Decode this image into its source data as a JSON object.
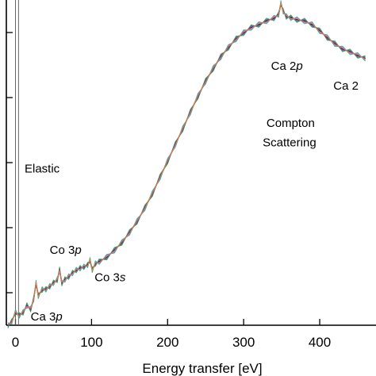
{
  "chart_data": {
    "type": "line",
    "title": "",
    "xlabel": "Energy transfer [eV]",
    "ylabel": "",
    "xlim": [
      -12,
      474
    ],
    "ylim": [
      0,
      100
    ],
    "grid": false,
    "x_ticks": [
      0,
      100,
      200,
      300,
      400
    ],
    "x_tick_labels": [
      "0",
      "100",
      "200",
      "300",
      "400"
    ],
    "y_tick_count": 5,
    "elastic_line_x": [
      0,
      4
    ],
    "series": [
      {
        "color": "#000000",
        "points": [
          [
            -10,
            0
          ],
          [
            -5,
            1
          ],
          [
            0,
            4
          ],
          [
            5,
            3
          ],
          [
            10,
            4
          ],
          [
            15,
            6
          ],
          [
            20,
            5
          ],
          [
            24,
            8
          ],
          [
            27,
            13
          ],
          [
            30,
            9
          ],
          [
            35,
            11
          ],
          [
            40,
            11
          ],
          [
            45,
            12
          ],
          [
            50,
            13
          ],
          [
            55,
            14
          ],
          [
            58,
            17
          ],
          [
            61,
            13
          ],
          [
            65,
            14
          ],
          [
            70,
            15
          ],
          [
            75,
            16
          ],
          [
            80,
            17
          ],
          [
            85,
            17.5
          ],
          [
            90,
            18
          ],
          [
            95,
            18.5
          ],
          [
            98,
            20
          ],
          [
            101,
            17
          ],
          [
            105,
            19
          ],
          [
            110,
            19.5
          ],
          [
            120,
            21
          ],
          [
            130,
            23
          ],
          [
            140,
            25.5
          ],
          [
            150,
            28.5
          ],
          [
            160,
            32
          ],
          [
            170,
            36
          ],
          [
            180,
            40.5
          ],
          [
            190,
            45.5
          ],
          [
            200,
            50.5
          ],
          [
            210,
            55.5
          ],
          [
            220,
            60.5
          ],
          [
            230,
            65.5
          ],
          [
            240,
            70.5
          ],
          [
            250,
            75
          ],
          [
            260,
            79
          ],
          [
            270,
            82.5
          ],
          [
            280,
            85.5
          ],
          [
            290,
            88
          ],
          [
            300,
            90
          ],
          [
            310,
            91.5
          ],
          [
            320,
            92.5
          ],
          [
            330,
            93.5
          ],
          [
            340,
            94.5
          ],
          [
            346,
            95.5
          ],
          [
            349,
            99
          ],
          [
            352,
            96.5
          ],
          [
            356,
            95
          ],
          [
            362,
            94.5
          ],
          [
            370,
            94
          ],
          [
            380,
            93.5
          ],
          [
            390,
            92.5
          ],
          [
            400,
            90.5
          ],
          [
            410,
            88.5
          ],
          [
            420,
            86.5
          ],
          [
            430,
            85
          ],
          [
            440,
            84
          ],
          [
            450,
            83
          ],
          [
            460,
            82
          ]
        ]
      },
      {
        "color": "#1a4fd6",
        "offset": 0.6
      },
      {
        "color": "#d63ad6",
        "offset": -0.5
      },
      {
        "color": "#22a822",
        "offset": 0.9
      },
      {
        "color": "#14a8a0",
        "offset": -0.8
      },
      {
        "color": "#8a2be2",
        "offset": 0.3
      },
      {
        "color": "#ff8c1a",
        "offset": -0.2
      }
    ],
    "annotations": [
      {
        "text": "Elastic",
        "x": 12,
        "y": 47
      },
      {
        "text_prefix": "Co 3",
        "text_italic": "p",
        "x": 45,
        "y": 22
      },
      {
        "text_prefix": "Co 3",
        "text_italic": "s",
        "x": 104,
        "y": 13.5
      },
      {
        "text_prefix": "Ca 3",
        "text_italic": "p",
        "x": 20,
        "y": 1.5
      },
      {
        "text_prefix": "Ca 2",
        "text_italic": "p",
        "x": 336,
        "y": 78.5
      },
      {
        "text_prefix": "Ca 2",
        "text_italic": "",
        "x": 418,
        "y": 72.5
      },
      {
        "text": "Compton",
        "x": 330,
        "y": 61
      },
      {
        "text": "Scattering",
        "x": 325,
        "y": 55
      }
    ]
  }
}
